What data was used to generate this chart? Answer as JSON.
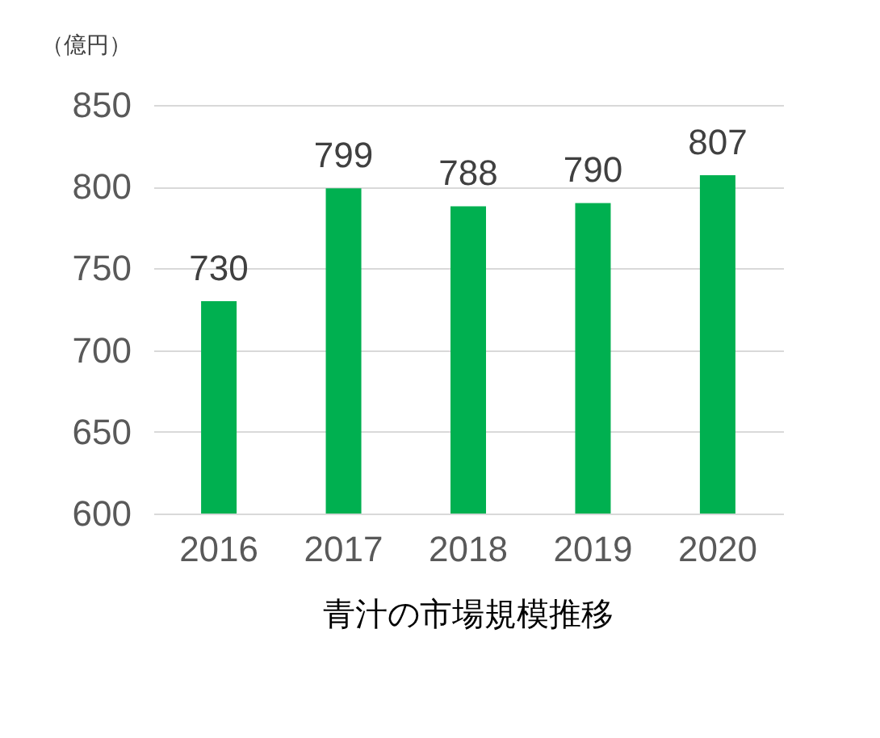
{
  "chart_data": {
    "type": "bar",
    "title": "青汁の市場規模推移",
    "ylabel": "（億円）",
    "categories": [
      "2016",
      "2017",
      "2018",
      "2019",
      "2020"
    ],
    "values": [
      730,
      799,
      788,
      790,
      807
    ],
    "color": "#00b050",
    "ylim": [
      600,
      850
    ],
    "yticks": [
      600,
      650,
      700,
      750,
      800,
      850
    ],
    "grid": "y",
    "data_labels": true
  }
}
